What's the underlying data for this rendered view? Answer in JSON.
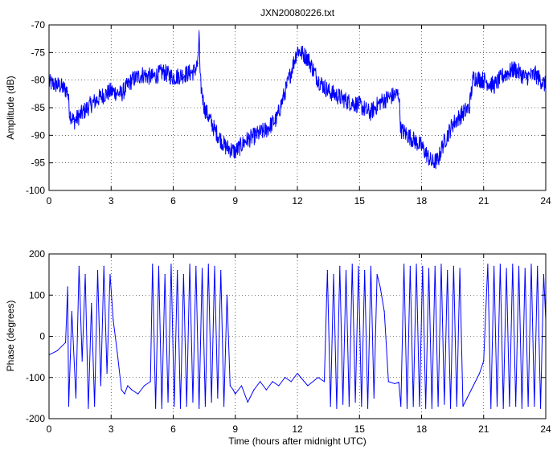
{
  "chart_data": [
    {
      "type": "line",
      "title": "JXN20080226.txt",
      "xlabel": "",
      "ylabel": "Amplitude (dB)",
      "xlim": [
        0,
        24
      ],
      "ylim": [
        -100,
        -70
      ],
      "xticks": [
        0,
        3,
        6,
        9,
        12,
        15,
        18,
        21,
        24
      ],
      "yticks": [
        -70,
        -75,
        -80,
        -85,
        -90,
        -95,
        -100
      ],
      "grid": true,
      "color": "#0000ff",
      "noise": 1.6,
      "series": [
        {
          "x": [
            0,
            0.5,
            0.9,
            1.0,
            1.2,
            1.6,
            2.0,
            2.5,
            3.0,
            3.5,
            4.0,
            4.5,
            5.0,
            5.5,
            6.0,
            6.5,
            7.0,
            7.2,
            7.25,
            7.3,
            7.5,
            8.0,
            8.5,
            9.0,
            9.5,
            10.0,
            10.5,
            11.0,
            11.5,
            12.0,
            12.5,
            13.0,
            13.5,
            14.0,
            14.5,
            15.0,
            15.5,
            16.0,
            16.5,
            16.9,
            17.0,
            17.5,
            18.0,
            18.5,
            18.8,
            19.0,
            19.5,
            20.0,
            20.3,
            20.5,
            21.0,
            21.5,
            22.0,
            22.5,
            23.0,
            23.5,
            24.0
          ],
          "values": [
            -80.5,
            -81,
            -82,
            -86,
            -87.5,
            -86,
            -84.5,
            -83,
            -82,
            -82.5,
            -80,
            -79,
            -79.5,
            -78.5,
            -79.5,
            -79,
            -78.5,
            -77,
            -71,
            -80,
            -85,
            -89,
            -92,
            -93,
            -91,
            -90,
            -89,
            -87,
            -81,
            -74.5,
            -76,
            -80,
            -82,
            -83,
            -84,
            -84.5,
            -86,
            -84,
            -83,
            -82.5,
            -89,
            -90.5,
            -92,
            -95,
            -94.5,
            -92,
            -88,
            -86,
            -85,
            -79.5,
            -80,
            -81,
            -79,
            -78,
            -79.5,
            -79,
            -81
          ]
        }
      ]
    },
    {
      "type": "line",
      "title": "",
      "xlabel": "Time (hours after midnight UTC)",
      "ylabel": "Phase (degrees)",
      "xlim": [
        0,
        24
      ],
      "ylim": [
        -200,
        200
      ],
      "xticks": [
        0,
        3,
        6,
        9,
        12,
        15,
        18,
        21,
        24
      ],
      "yticks": [
        200,
        100,
        0,
        -100,
        -200
      ],
      "grid": true,
      "color": "#0000ff",
      "series": [
        {
          "x": [
            0,
            0.4,
            0.8,
            0.9,
            0.95,
            1.1,
            1.3,
            1.45,
            1.6,
            1.75,
            1.9,
            2.05,
            2.2,
            2.35,
            2.5,
            2.65,
            2.8,
            2.95,
            3.1,
            3.3,
            3.5,
            3.65,
            3.8,
            4.0,
            4.3,
            4.6,
            4.9,
            5.0,
            5.15,
            5.3,
            5.45,
            5.6,
            5.75,
            5.9,
            6.05,
            6.2,
            6.35,
            6.5,
            6.65,
            6.8,
            6.95,
            7.1,
            7.25,
            7.4,
            7.55,
            7.7,
            7.85,
            8.0,
            8.15,
            8.3,
            8.45,
            8.6,
            8.75,
            8.9,
            9.0,
            9.3,
            9.6,
            9.9,
            10.2,
            10.5,
            10.8,
            11.1,
            11.4,
            11.7,
            12.0,
            12.5,
            13.0,
            13.3,
            13.45,
            13.6,
            13.75,
            13.9,
            14.05,
            14.2,
            14.35,
            14.5,
            14.65,
            14.8,
            14.95,
            15.1,
            15.25,
            15.4,
            15.55,
            15.7,
            15.85,
            16.0,
            16.2,
            16.4,
            16.7,
            16.9,
            17.0,
            17.15,
            17.3,
            17.45,
            17.6,
            17.75,
            17.9,
            18.05,
            18.2,
            18.35,
            18.5,
            18.65,
            18.8,
            18.95,
            19.1,
            19.25,
            19.4,
            19.55,
            19.7,
            19.85,
            20.0,
            20.2,
            20.5,
            20.8,
            21.0,
            21.2,
            21.35,
            21.5,
            21.65,
            21.8,
            21.95,
            22.1,
            22.25,
            22.4,
            22.55,
            22.7,
            22.85,
            23.0,
            23.15,
            23.3,
            23.45,
            23.6,
            23.75,
            23.9,
            24.0
          ],
          "values": [
            -45,
            -35,
            -15,
            120,
            -170,
            60,
            -150,
            170,
            -60,
            150,
            -175,
            80,
            -170,
            160,
            -120,
            170,
            -90,
            150,
            40,
            -40,
            -130,
            -140,
            -120,
            -130,
            -140,
            -120,
            -110,
            175,
            -175,
            170,
            -175,
            150,
            -160,
            175,
            -170,
            160,
            -175,
            150,
            -170,
            175,
            -160,
            170,
            -175,
            165,
            -170,
            175,
            -160,
            170,
            -150,
            160,
            -170,
            100,
            -120,
            -130,
            -140,
            -120,
            -160,
            -130,
            -110,
            -130,
            -110,
            -120,
            -100,
            -110,
            -90,
            -120,
            -100,
            -110,
            160,
            -170,
            150,
            -175,
            170,
            -165,
            160,
            -170,
            175,
            -160,
            170,
            -170,
            160,
            -175,
            170,
            -150,
            150,
            120,
            60,
            -110,
            -115,
            -112,
            -170,
            175,
            -175,
            170,
            -170,
            175,
            -170,
            170,
            -175,
            165,
            -175,
            170,
            -170,
            175,
            -165,
            160,
            -175,
            170,
            -170,
            165,
            -170,
            -150,
            -120,
            -90,
            -60,
            175,
            -175,
            170,
            -170,
            175,
            -175,
            165,
            -170,
            175,
            -170,
            170,
            -175,
            165,
            -170,
            175,
            -170,
            170,
            -175,
            150,
            40
          ]
        }
      ]
    }
  ]
}
